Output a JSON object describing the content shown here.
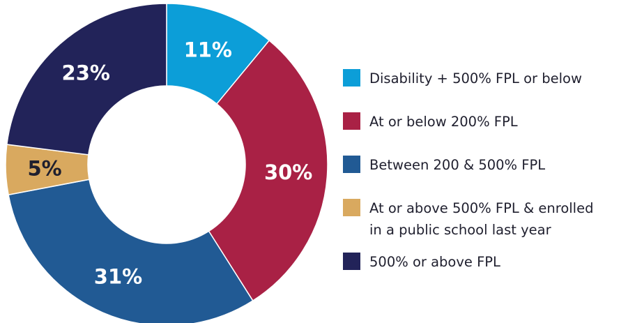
{
  "chart_data": {
    "type": "pie",
    "style": "donut",
    "title": "",
    "categories": [
      "Disability + 500% FPL or below",
      "At or below 200% FPL",
      "Between 200 & 500% FPL",
      "At or above 500% FPL & enrolled\nin a public school last year",
      "500% or above FPL"
    ],
    "values": [
      11,
      30,
      31,
      5,
      23
    ],
    "value_labels": [
      "11%",
      "30%",
      "31%",
      "5%",
      "23%"
    ],
    "colors": [
      "#0c9ed8",
      "#a92145",
      "#215a94",
      "#d9a95f",
      "#222359"
    ],
    "label_colors": [
      "#ffffff",
      "#ffffff",
      "#ffffff",
      "#1f1f2e",
      "#ffffff"
    ],
    "legend_position": "right",
    "legend": [
      {
        "label": "Disability + 500% FPL or below",
        "color": "#0c9ed8"
      },
      {
        "label": "At or below 200% FPL",
        "color": "#a92145"
      },
      {
        "label": "Between 200 & 500% FPL",
        "color": "#215a94"
      },
      {
        "label": "At or above 500% FPL & enrolled\nin a public school last year",
        "color": "#d9a95f"
      },
      {
        "label": "500% or above FPL",
        "color": "#222359"
      }
    ]
  }
}
